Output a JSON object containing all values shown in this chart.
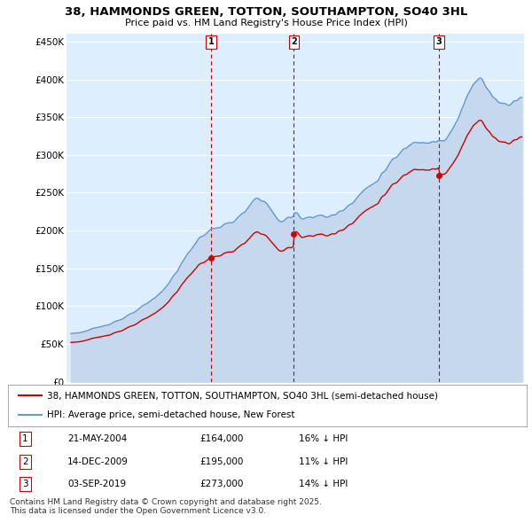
{
  "title": "38, HAMMONDS GREEN, TOTTON, SOUTHAMPTON, SO40 3HL",
  "subtitle": "Price paid vs. HM Land Registry's House Price Index (HPI)",
  "ylim": [
    0,
    460000
  ],
  "yticks": [
    0,
    50000,
    100000,
    150000,
    200000,
    250000,
    300000,
    350000,
    400000,
    450000
  ],
  "ytick_labels": [
    "£0",
    "£50K",
    "£100K",
    "£150K",
    "£200K",
    "£250K",
    "£300K",
    "£350K",
    "£400K",
    "£450K"
  ],
  "bg_color": "#ddeeff",
  "grid_color": "#ffffff",
  "legend1_label": "38, HAMMONDS GREEN, TOTTON, SOUTHAMPTON, SO40 3HL (semi-detached house)",
  "legend2_label": "HPI: Average price, semi-detached house, New Forest",
  "sale1_date": "21-MAY-2004",
  "sale1_price": "£164,000",
  "sale1_hpi": "16% ↓ HPI",
  "sale2_date": "14-DEC-2009",
  "sale2_price": "£195,000",
  "sale2_hpi": "11% ↓ HPI",
  "sale3_date": "03-SEP-2019",
  "sale3_price": "£273,000",
  "sale3_hpi": "14% ↓ HPI",
  "footer": "Contains HM Land Registry data © Crown copyright and database right 2025.\nThis data is licensed under the Open Government Licence v3.0.",
  "red_line_color": "#cc0000",
  "blue_line_color": "#6699cc",
  "blue_fill_color": "#c5d8ee",
  "dashed_red_color": "#cc0000",
  "sale_marker_color": "#cc0000",
  "sale1_year": 2004.388,
  "sale1_price_val": 164000,
  "sale2_year": 2009.954,
  "sale2_price_val": 195000,
  "sale3_year": 2019.671,
  "sale3_price_val": 273000
}
